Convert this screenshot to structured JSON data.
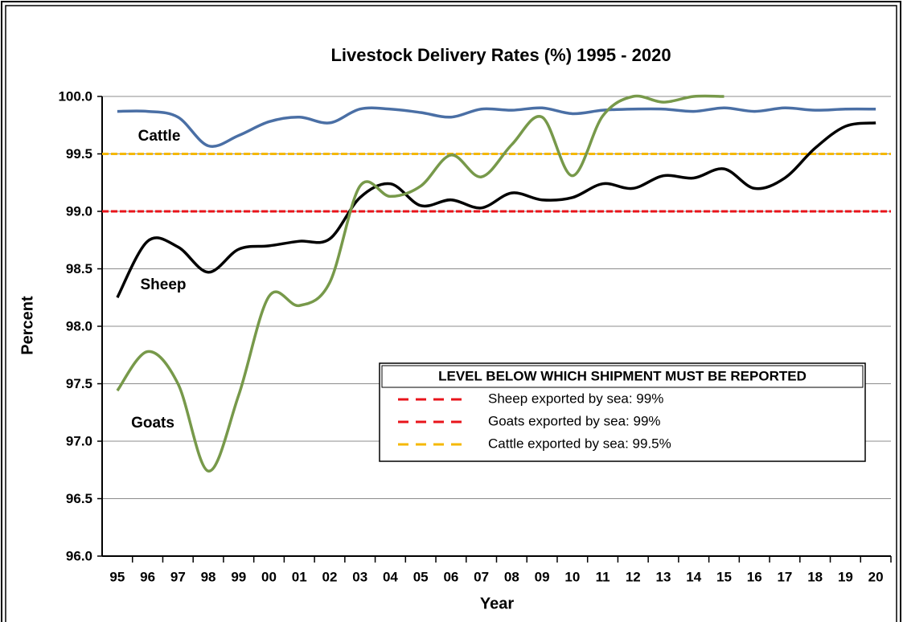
{
  "chart_data": {
    "type": "line",
    "title": "Livestock Delivery Rates (%) 1995 - 2020",
    "x_label": "Year",
    "y_label": "Percent",
    "categories": [
      "95",
      "96",
      "97",
      "98",
      "99",
      "00",
      "01",
      "02",
      "03",
      "04",
      "05",
      "06",
      "07",
      "08",
      "09",
      "10",
      "11",
      "12",
      "13",
      "14",
      "15",
      "16",
      "17",
      "18",
      "19",
      "20"
    ],
    "ylim": [
      96,
      100
    ],
    "yticks": [
      {
        "value": 96,
        "label": "96.0"
      },
      {
        "value": 96.5,
        "label": "96.5"
      },
      {
        "value": 97,
        "label": "97.0"
      },
      {
        "value": 97.5,
        "label": "97.5"
      },
      {
        "value": 98,
        "label": "98.0"
      },
      {
        "value": 98.5,
        "label": "98.5"
      },
      {
        "value": 99,
        "label": "99.0"
      },
      {
        "value": 99.5,
        "label": "99.5"
      },
      {
        "value": 100,
        "label": "100.0"
      }
    ],
    "grid": true,
    "series": [
      {
        "name": "Cattle",
        "color": "#4a6fa5",
        "values": [
          99.87,
          99.87,
          99.82,
          99.57,
          99.66,
          99.78,
          99.82,
          99.77,
          99.89,
          99.89,
          99.86,
          99.82,
          99.89,
          99.88,
          99.9,
          99.85,
          99.88,
          99.89,
          99.89,
          99.87,
          99.9,
          99.87,
          99.9,
          99.88,
          99.89,
          99.89
        ]
      },
      {
        "name": "Sheep",
        "color": "#000000",
        "values": [
          98.25,
          98.74,
          98.69,
          98.47,
          98.67,
          98.7,
          98.74,
          98.76,
          99.12,
          99.24,
          99.05,
          99.1,
          99.03,
          99.16,
          99.1,
          99.12,
          99.24,
          99.2,
          99.31,
          99.29,
          99.37,
          99.2,
          99.29,
          99.55,
          99.74,
          99.77
        ]
      },
      {
        "name": "Goats",
        "color": "#77994a",
        "values": [
          97.44,
          97.78,
          97.5,
          96.74,
          97.4,
          98.26,
          98.18,
          98.38,
          99.22,
          99.13,
          99.22,
          99.49,
          99.3,
          99.58,
          99.82,
          99.31,
          99.83,
          100.0,
          99.95,
          100.0,
          100.0,
          null,
          null,
          null,
          null,
          null
        ]
      }
    ],
    "legend_title": "LEVEL BELOW WHICH SHIPMENT MUST BE REPORTED",
    "reference_lines": [
      {
        "name": "Sheep exported by sea: 99%",
        "value": 99,
        "color": "#e8141b"
      },
      {
        "name": "Goats exported by sea: 99%",
        "value": 99,
        "color": "#e8141b"
      },
      {
        "name": "Cattle exported by sea: 99.5%",
        "value": 99.5,
        "color": "#f5b800"
      }
    ]
  }
}
